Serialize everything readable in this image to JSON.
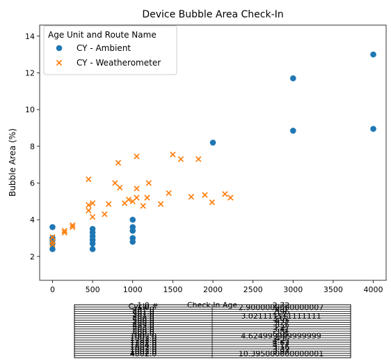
{
  "chart_data": {
    "type": "scatter",
    "title": "Device Bubble Area Check-In",
    "xlabel": "Check In Age",
    "ylabel": "Bubble Area (%)",
    "xlim": [
      -160,
      4160
    ],
    "ylim": [
      0.7,
      14.6
    ],
    "xticks": [
      0,
      500,
      1000,
      1500,
      2000,
      2500,
      3000,
      3500,
      4000
    ],
    "yticks": [
      2,
      4,
      6,
      8,
      10,
      12,
      14
    ],
    "grid": false,
    "legend": {
      "title": "Age Unit and Route Name",
      "placement": "top-left"
    },
    "series": [
      {
        "name": "CY - Ambient",
        "marker": "circle",
        "color": "#1f77b4",
        "points": [
          [
            0,
            2.4
          ],
          [
            0,
            2.7
          ],
          [
            0,
            2.9
          ],
          [
            0,
            3.0
          ],
          [
            0,
            3.6
          ],
          [
            500,
            2.4
          ],
          [
            500,
            2.7
          ],
          [
            500,
            2.9
          ],
          [
            500,
            3.1
          ],
          [
            500,
            3.3
          ],
          [
            500,
            3.5
          ],
          [
            1000,
            2.8
          ],
          [
            1000,
            3.0
          ],
          [
            1000,
            3.4
          ],
          [
            1000,
            3.6
          ],
          [
            1000,
            4.0
          ],
          [
            2000,
            8.2
          ],
          [
            3000,
            8.85
          ],
          [
            3000,
            11.7
          ],
          [
            4000,
            8.95
          ],
          [
            4000,
            13.0
          ]
        ]
      },
      {
        "name": "CY - Weatherometer",
        "marker": "x",
        "color": "#ff7f0e",
        "points": [
          [
            0,
            2.65
          ],
          [
            0,
            2.8
          ],
          [
            0,
            3.05
          ],
          [
            150,
            3.3
          ],
          [
            150,
            3.4
          ],
          [
            250,
            3.6
          ],
          [
            250,
            3.7
          ],
          [
            450,
            4.5
          ],
          [
            450,
            4.8
          ],
          [
            450,
            6.2
          ],
          [
            500,
            4.15
          ],
          [
            500,
            4.9
          ],
          [
            650,
            4.3
          ],
          [
            700,
            4.85
          ],
          [
            780,
            6.0
          ],
          [
            820,
            7.1
          ],
          [
            840,
            5.75
          ],
          [
            900,
            4.9
          ],
          [
            950,
            5.1
          ],
          [
            1000,
            5.0
          ],
          [
            1050,
            5.2
          ],
          [
            1050,
            5.7
          ],
          [
            1050,
            7.45
          ],
          [
            1130,
            4.75
          ],
          [
            1180,
            5.2
          ],
          [
            1200,
            6.0
          ],
          [
            1350,
            4.85
          ],
          [
            1450,
            5.45
          ],
          [
            1500,
            7.55
          ],
          [
            1600,
            7.3
          ],
          [
            1730,
            5.25
          ],
          [
            1820,
            7.3
          ],
          [
            1900,
            5.35
          ],
          [
            1990,
            4.95
          ],
          [
            2150,
            5.4
          ],
          [
            2220,
            5.2
          ]
        ]
      }
    ],
    "table": {
      "col_labels": [
        "Cycle #",
        "Check In Age"
      ],
      "rows": [
        [
          "4002.0",
          "10.395000000000001"
        ],
        [
          "1002.0",
          "3.97"
        ],
        [
          "1002.0",
          "3.32"
        ],
        [
          "1002.0",
          "3.16"
        ],
        [
          "1284.0",
          "4.17"
        ],
        [
          "1282.0",
          "4.62"
        ],
        [
          "1282.0",
          "4.27"
        ],
        [
          "1002.0",
          "4.5"
        ],
        [
          "1002.0",
          "4.624999999999999"
        ],
        [
          "500.0",
          "5.01"
        ],
        [
          "500.0",
          "3.9"
        ],
        [
          "500.0",
          "3.41"
        ],
        [
          "503.0",
          "3.27"
        ],
        [
          "499.0",
          "3.3"
        ],
        [
          "499.0",
          "3.27"
        ],
        [
          "500.0",
          "4.0"
        ],
        [
          "400.0",
          "3.61"
        ],
        [
          "401.0",
          "3.021111111111111"
        ],
        [
          "501.0",
          "3.2"
        ],
        [
          "401.0",
          "2.96"
        ],
        [
          "401.0",
          "4.0"
        ],
        [
          "1.0",
          "2.9000000000000007"
        ],
        [
          "1.0",
          "2.72"
        ]
      ]
    }
  }
}
